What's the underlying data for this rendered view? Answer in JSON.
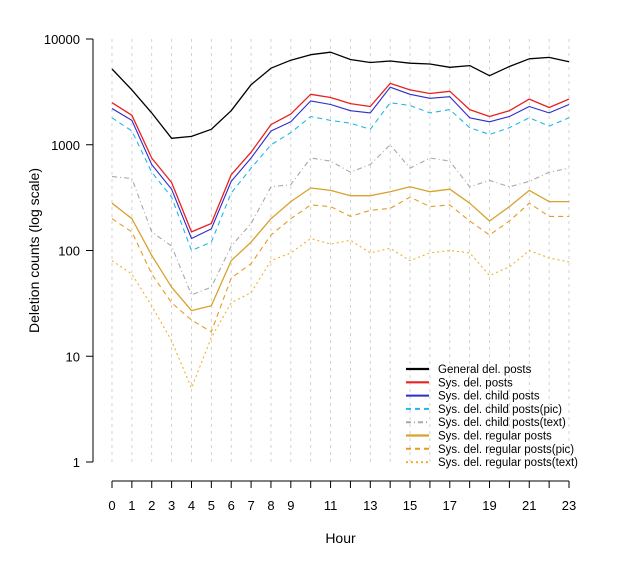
{
  "chart_data": {
    "type": "line",
    "title": "",
    "xlabel": "Hour",
    "ylabel": "Deletion counts (log scale)",
    "y_scale": "log",
    "ylim": [
      1,
      10000
    ],
    "xlim": [
      0,
      23
    ],
    "grid": "vertical dashed at each hour",
    "legend_position": "bottom-right",
    "x": [
      0,
      1,
      2,
      3,
      4,
      5,
      6,
      7,
      8,
      9,
      10,
      11,
      12,
      13,
      14,
      15,
      16,
      17,
      18,
      19,
      20,
      21,
      22,
      23
    ],
    "x_tick_labels": [
      "0",
      "1",
      "2",
      "3",
      "4",
      "5",
      "6",
      "7",
      "8",
      "9",
      "11",
      "13",
      "15",
      "17",
      "19",
      "21",
      "23"
    ],
    "x_tick_values": [
      0,
      1,
      2,
      3,
      4,
      5,
      6,
      7,
      8,
      9,
      11,
      13,
      15,
      17,
      19,
      21,
      23
    ],
    "y_tick_labels": [
      "1",
      "10",
      "100",
      "1000",
      "10000"
    ],
    "y_tick_values": [
      1,
      10,
      100,
      1000,
      10000
    ],
    "series": [
      {
        "name": "General del. posts",
        "color": "#000000",
        "dash": "solid",
        "width": 1.3,
        "values": [
          5200,
          3300,
          2000,
          1150,
          1200,
          1400,
          2100,
          3700,
          5300,
          6300,
          7100,
          7500,
          6400,
          6000,
          6200,
          5900,
          5800,
          5400,
          5600,
          4500,
          5500,
          6500,
          6700,
          6100
        ]
      },
      {
        "name": "Sys. del. posts",
        "color": "#e8221f",
        "dash": "solid",
        "width": 1.3,
        "values": [
          2500,
          1900,
          750,
          440,
          150,
          180,
          520,
          850,
          1550,
          1950,
          3000,
          2800,
          2450,
          2300,
          3800,
          3300,
          3050,
          3200,
          2150,
          1850,
          2100,
          2700,
          2250,
          2700
        ]
      },
      {
        "name": "Sys. del. child posts",
        "color": "#2c2ccf",
        "dash": "solid",
        "width": 1.1,
        "values": [
          2200,
          1700,
          650,
          380,
          130,
          160,
          450,
          750,
          1350,
          1650,
          2600,
          2400,
          2100,
          2000,
          3500,
          3000,
          2750,
          2850,
          1800,
          1650,
          1850,
          2300,
          2000,
          2400
        ]
      },
      {
        "name": "Sys. del. child posts(pic)",
        "color": "#1fb7e6",
        "dash": "5,4",
        "width": 1.1,
        "values": [
          1800,
          1350,
          550,
          320,
          100,
          120,
          350,
          600,
          1000,
          1300,
          1850,
          1700,
          1600,
          1400,
          2500,
          2350,
          2000,
          2150,
          1450,
          1250,
          1450,
          1800,
          1500,
          1800
        ]
      },
      {
        "name": "Sys. del. child posts(text)",
        "color": "#a8a8a8",
        "dash": "5,3,1,3",
        "width": 1.1,
        "values": [
          500,
          480,
          150,
          110,
          38,
          45,
          110,
          180,
          400,
          420,
          750,
          700,
          550,
          650,
          1000,
          600,
          750,
          700,
          400,
          460,
          400,
          450,
          550,
          600
        ]
      },
      {
        "name": "Sys. del. regular posts",
        "color": "#d7a22e",
        "dash": "solid",
        "width": 1.3,
        "values": [
          280,
          200,
          90,
          45,
          27,
          30,
          80,
          120,
          200,
          290,
          390,
          370,
          330,
          330,
          360,
          400,
          360,
          380,
          280,
          190,
          260,
          370,
          290,
          290
        ]
      },
      {
        "name": "Sys. del. regular posts(pic)",
        "color": "#e69a21",
        "dash": "5,4",
        "width": 1.1,
        "values": [
          200,
          150,
          60,
          32,
          22,
          17,
          55,
          75,
          140,
          200,
          270,
          260,
          210,
          240,
          250,
          320,
          260,
          270,
          190,
          140,
          190,
          280,
          210,
          210
        ]
      },
      {
        "name": "Sys. del. regular posts(text)",
        "color": "#f0b12a",
        "dash": "2,3",
        "width": 1.1,
        "values": [
          80,
          60,
          30,
          14,
          5,
          15,
          32,
          40,
          80,
          95,
          130,
          115,
          125,
          95,
          105,
          80,
          95,
          100,
          95,
          58,
          70,
          100,
          85,
          78
        ]
      }
    ]
  }
}
